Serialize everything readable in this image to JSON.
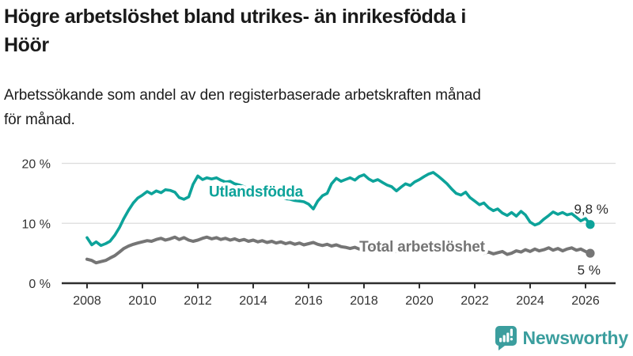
{
  "header": {
    "title": "Högre arbetslöshet bland utrikes- än inrikesfödda i\nHöör",
    "subtitle": "Arbetssökande som andel av den registerbaserade arbetskraften månad\nför månad."
  },
  "colors": {
    "background": "#ffffff",
    "title_text": "#1a1a1a",
    "axis_text": "#333333",
    "axis_line": "#2e2e2e",
    "gridline": "#dcdcdc",
    "value_label_text": "#2b2b2b",
    "series_utlandsfodda": "#0da39a",
    "series_total": "#757575",
    "brand_teal": "#3b9e9e"
  },
  "chart_data": {
    "type": "line",
    "title": "Högre arbetslöshet bland utrikes- än inrikesfödda i Höör",
    "subtitle": "Arbetssökande som andel av den registerbaserade arbetskraften månad för månad.",
    "xlabel": "",
    "ylabel": "",
    "unit": "%",
    "grid": "horizontal",
    "legend_position": "inline-labels",
    "xlim": [
      2007.1,
      2027.1
    ],
    "ylim": [
      0,
      20
    ],
    "yticks": [
      {
        "value": 0,
        "label": "0 %"
      },
      {
        "value": 10,
        "label": "10 %"
      },
      {
        "value": 20,
        "label": "20 %"
      }
    ],
    "xticks": [
      2008,
      2010,
      2012,
      2014,
      2016,
      2018,
      2020,
      2022,
      2024,
      2026
    ],
    "series": [
      {
        "name": "Utlandsfödda",
        "color": "#0da39a",
        "stroke_width": 3.6,
        "end_value": 9.8,
        "end_label": "9,8 %",
        "value_label_offset": [
          23,
          -14
        ],
        "label_anchor": {
          "x": 2014.1,
          "y": 15.35
        },
        "points": [
          [
            2008.0,
            7.6
          ],
          [
            2008.17,
            6.4
          ],
          [
            2008.33,
            6.9
          ],
          [
            2008.5,
            6.3
          ],
          [
            2008.67,
            6.6
          ],
          [
            2008.83,
            7.0
          ],
          [
            2009.0,
            8.0
          ],
          [
            2009.17,
            9.3
          ],
          [
            2009.33,
            10.8
          ],
          [
            2009.5,
            12.2
          ],
          [
            2009.67,
            13.4
          ],
          [
            2009.83,
            14.2
          ],
          [
            2010.0,
            14.7
          ],
          [
            2010.17,
            15.3
          ],
          [
            2010.33,
            14.9
          ],
          [
            2010.5,
            15.4
          ],
          [
            2010.67,
            15.1
          ],
          [
            2010.83,
            15.6
          ],
          [
            2011.0,
            15.5
          ],
          [
            2011.17,
            15.2
          ],
          [
            2011.33,
            14.3
          ],
          [
            2011.5,
            14.0
          ],
          [
            2011.67,
            14.4
          ],
          [
            2011.83,
            16.5
          ],
          [
            2012.0,
            17.9
          ],
          [
            2012.17,
            17.3
          ],
          [
            2012.33,
            17.6
          ],
          [
            2012.5,
            17.4
          ],
          [
            2012.67,
            17.6
          ],
          [
            2012.83,
            17.2
          ],
          [
            2013.0,
            16.9
          ],
          [
            2013.17,
            17.0
          ],
          [
            2013.33,
            16.6
          ],
          [
            2013.5,
            16.4
          ],
          [
            2013.67,
            16.1
          ],
          [
            2013.83,
            15.8
          ],
          [
            2014.0,
            15.6
          ],
          [
            2014.17,
            15.3
          ],
          [
            2014.33,
            15.1
          ],
          [
            2014.5,
            14.9
          ],
          [
            2014.67,
            14.7
          ],
          [
            2014.83,
            14.5
          ],
          [
            2015.0,
            14.3
          ],
          [
            2015.17,
            14.1
          ],
          [
            2015.33,
            14.0
          ],
          [
            2015.5,
            13.8
          ],
          [
            2015.67,
            13.7
          ],
          [
            2015.83,
            13.6
          ],
          [
            2016.0,
            13.2
          ],
          [
            2016.17,
            12.4
          ],
          [
            2016.33,
            13.7
          ],
          [
            2016.5,
            14.6
          ],
          [
            2016.67,
            15.0
          ],
          [
            2016.83,
            16.6
          ],
          [
            2017.0,
            17.5
          ],
          [
            2017.17,
            17.0
          ],
          [
            2017.33,
            17.3
          ],
          [
            2017.5,
            17.6
          ],
          [
            2017.67,
            17.2
          ],
          [
            2017.83,
            17.8
          ],
          [
            2018.0,
            18.1
          ],
          [
            2018.17,
            17.4
          ],
          [
            2018.33,
            17.0
          ],
          [
            2018.5,
            17.3
          ],
          [
            2018.67,
            16.8
          ],
          [
            2018.83,
            16.4
          ],
          [
            2019.0,
            16.1
          ],
          [
            2019.17,
            15.4
          ],
          [
            2019.33,
            16.0
          ],
          [
            2019.5,
            16.6
          ],
          [
            2019.67,
            16.3
          ],
          [
            2019.83,
            16.9
          ],
          [
            2020.0,
            17.3
          ],
          [
            2020.17,
            17.8
          ],
          [
            2020.33,
            18.2
          ],
          [
            2020.5,
            18.5
          ],
          [
            2020.67,
            17.9
          ],
          [
            2020.83,
            17.3
          ],
          [
            2021.0,
            16.6
          ],
          [
            2021.17,
            15.7
          ],
          [
            2021.33,
            15.0
          ],
          [
            2021.5,
            14.7
          ],
          [
            2021.67,
            15.2
          ],
          [
            2021.83,
            14.3
          ],
          [
            2022.0,
            13.7
          ],
          [
            2022.17,
            13.1
          ],
          [
            2022.33,
            13.4
          ],
          [
            2022.5,
            12.6
          ],
          [
            2022.67,
            12.1
          ],
          [
            2022.83,
            12.4
          ],
          [
            2023.0,
            11.7
          ],
          [
            2023.17,
            11.3
          ],
          [
            2023.33,
            11.8
          ],
          [
            2023.5,
            11.2
          ],
          [
            2023.67,
            12.0
          ],
          [
            2023.83,
            11.4
          ],
          [
            2024.0,
            10.2
          ],
          [
            2024.17,
            9.7
          ],
          [
            2024.33,
            10.0
          ],
          [
            2024.5,
            10.7
          ],
          [
            2024.67,
            11.3
          ],
          [
            2024.83,
            11.9
          ],
          [
            2025.0,
            11.5
          ],
          [
            2025.17,
            11.8
          ],
          [
            2025.33,
            11.4
          ],
          [
            2025.5,
            11.6
          ],
          [
            2025.67,
            11.0
          ],
          [
            2025.83,
            10.4
          ],
          [
            2026.0,
            10.8
          ],
          [
            2026.17,
            9.8
          ]
        ]
      },
      {
        "name": "Total arbetslöshet",
        "color": "#757575",
        "stroke_width": 4,
        "end_value": 5.0,
        "end_label": "5 %",
        "value_label_offset": [
          13,
          27
        ],
        "label_anchor": {
          "x": 2020.1,
          "y": 6.2
        },
        "points": [
          [
            2008.0,
            4.0
          ],
          [
            2008.17,
            3.8
          ],
          [
            2008.33,
            3.4
          ],
          [
            2008.5,
            3.6
          ],
          [
            2008.67,
            3.8
          ],
          [
            2008.83,
            4.2
          ],
          [
            2009.0,
            4.6
          ],
          [
            2009.17,
            5.2
          ],
          [
            2009.33,
            5.8
          ],
          [
            2009.5,
            6.2
          ],
          [
            2009.67,
            6.5
          ],
          [
            2009.83,
            6.7
          ],
          [
            2010.0,
            6.9
          ],
          [
            2010.17,
            7.1
          ],
          [
            2010.33,
            7.0
          ],
          [
            2010.5,
            7.3
          ],
          [
            2010.67,
            7.5
          ],
          [
            2010.83,
            7.2
          ],
          [
            2011.0,
            7.4
          ],
          [
            2011.17,
            7.7
          ],
          [
            2011.33,
            7.3
          ],
          [
            2011.5,
            7.6
          ],
          [
            2011.67,
            7.2
          ],
          [
            2011.83,
            7.0
          ],
          [
            2012.0,
            7.2
          ],
          [
            2012.17,
            7.5
          ],
          [
            2012.33,
            7.7
          ],
          [
            2012.5,
            7.4
          ],
          [
            2012.67,
            7.6
          ],
          [
            2012.83,
            7.3
          ],
          [
            2013.0,
            7.5
          ],
          [
            2013.17,
            7.2
          ],
          [
            2013.33,
            7.4
          ],
          [
            2013.5,
            7.1
          ],
          [
            2013.67,
            7.3
          ],
          [
            2013.83,
            7.0
          ],
          [
            2014.0,
            7.2
          ],
          [
            2014.17,
            6.9
          ],
          [
            2014.33,
            7.1
          ],
          [
            2014.5,
            6.8
          ],
          [
            2014.67,
            7.0
          ],
          [
            2014.83,
            6.7
          ],
          [
            2015.0,
            6.9
          ],
          [
            2015.17,
            6.6
          ],
          [
            2015.33,
            6.8
          ],
          [
            2015.5,
            6.5
          ],
          [
            2015.67,
            6.7
          ],
          [
            2015.83,
            6.4
          ],
          [
            2016.0,
            6.6
          ],
          [
            2016.17,
            6.8
          ],
          [
            2016.33,
            6.5
          ],
          [
            2016.5,
            6.3
          ],
          [
            2016.67,
            6.5
          ],
          [
            2016.83,
            6.2
          ],
          [
            2017.0,
            6.4
          ],
          [
            2017.17,
            6.1
          ],
          [
            2017.33,
            6.0
          ],
          [
            2017.5,
            5.8
          ],
          [
            2017.67,
            6.0
          ],
          [
            2017.83,
            5.7
          ],
          [
            2018.0,
            5.9
          ],
          [
            2018.17,
            5.6
          ],
          [
            2018.33,
            5.8
          ],
          [
            2018.5,
            5.5
          ],
          [
            2018.67,
            5.7
          ],
          [
            2018.83,
            5.4
          ],
          [
            2019.0,
            5.6
          ],
          [
            2019.17,
            5.3
          ],
          [
            2019.33,
            5.5
          ],
          [
            2019.5,
            5.4
          ],
          [
            2019.67,
            5.6
          ],
          [
            2019.83,
            5.8
          ],
          [
            2020.0,
            6.0
          ],
          [
            2020.17,
            6.3
          ],
          [
            2020.33,
            6.5
          ],
          [
            2020.5,
            6.2
          ],
          [
            2020.67,
            6.0
          ],
          [
            2020.83,
            5.8
          ],
          [
            2021.0,
            5.9
          ],
          [
            2021.17,
            5.6
          ],
          [
            2021.33,
            5.4
          ],
          [
            2021.5,
            5.5
          ],
          [
            2021.67,
            5.2
          ],
          [
            2021.83,
            5.3
          ],
          [
            2022.0,
            5.1
          ],
          [
            2022.17,
            5.3
          ],
          [
            2022.33,
            5.0
          ],
          [
            2022.5,
            5.2
          ],
          [
            2022.67,
            4.9
          ],
          [
            2022.83,
            5.1
          ],
          [
            2023.0,
            5.3
          ],
          [
            2023.17,
            4.8
          ],
          [
            2023.33,
            5.0
          ],
          [
            2023.5,
            5.4
          ],
          [
            2023.67,
            5.2
          ],
          [
            2023.83,
            5.6
          ],
          [
            2024.0,
            5.3
          ],
          [
            2024.17,
            5.7
          ],
          [
            2024.33,
            5.4
          ],
          [
            2024.5,
            5.6
          ],
          [
            2024.67,
            5.9
          ],
          [
            2024.83,
            5.5
          ],
          [
            2025.0,
            5.8
          ],
          [
            2025.17,
            5.4
          ],
          [
            2025.33,
            5.7
          ],
          [
            2025.5,
            5.9
          ],
          [
            2025.67,
            5.5
          ],
          [
            2025.83,
            5.7
          ],
          [
            2026.0,
            5.3
          ],
          [
            2026.17,
            5.0
          ]
        ]
      }
    ]
  },
  "footer": {
    "brand": "Newsworthy",
    "logo_icon": "bar-chart-speech-bubble-icon"
  }
}
